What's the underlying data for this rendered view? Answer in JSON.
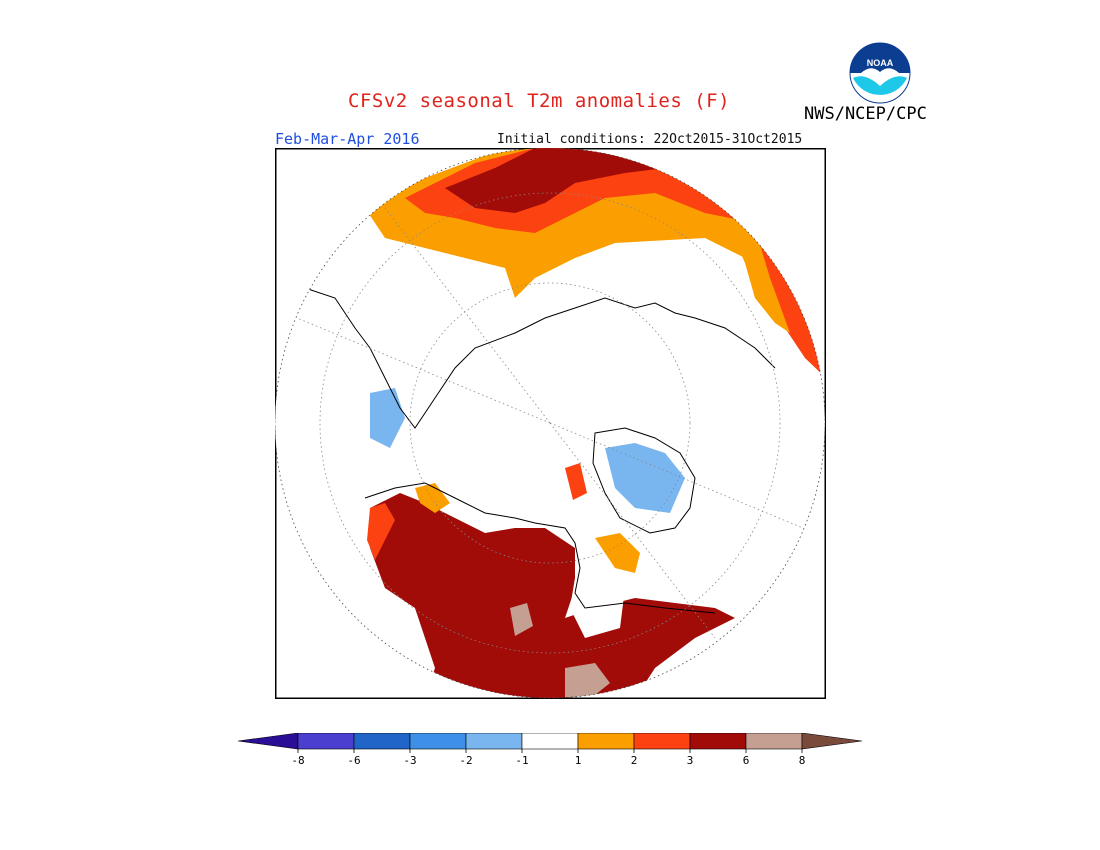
{
  "header": {
    "title": "CFSv2 seasonal T2m anomalies (F)",
    "season": "Feb-Mar-Apr 2016",
    "initial_conditions": "Initial conditions: 22Oct2015-31Oct2015",
    "agency": "NWS/NCEP/CPC",
    "logo_text": "NOAA"
  },
  "colors": {
    "title": "#e0231d",
    "season": "#1f4fe0"
  },
  "legend": {
    "ticks": [
      "-8",
      "-6",
      "-3",
      "-2",
      "-1",
      "1",
      "2",
      "3",
      "6",
      "8"
    ],
    "bins": [
      {
        "color": "#2a0f96"
      },
      {
        "color": "#4a3fcf"
      },
      {
        "color": "#2165c8"
      },
      {
        "color": "#3d8fe8"
      },
      {
        "color": "#79b6f0"
      },
      {
        "color": "#ffffff"
      },
      {
        "color": "#fb9f00"
      },
      {
        "color": "#fd4211"
      },
      {
        "color": "#a10b08"
      },
      {
        "color": "#c59f92"
      },
      {
        "color": "#7a4a3a"
      }
    ]
  },
  "map": {
    "projection": "north-polar-stereographic",
    "graticule": "dotted"
  }
}
